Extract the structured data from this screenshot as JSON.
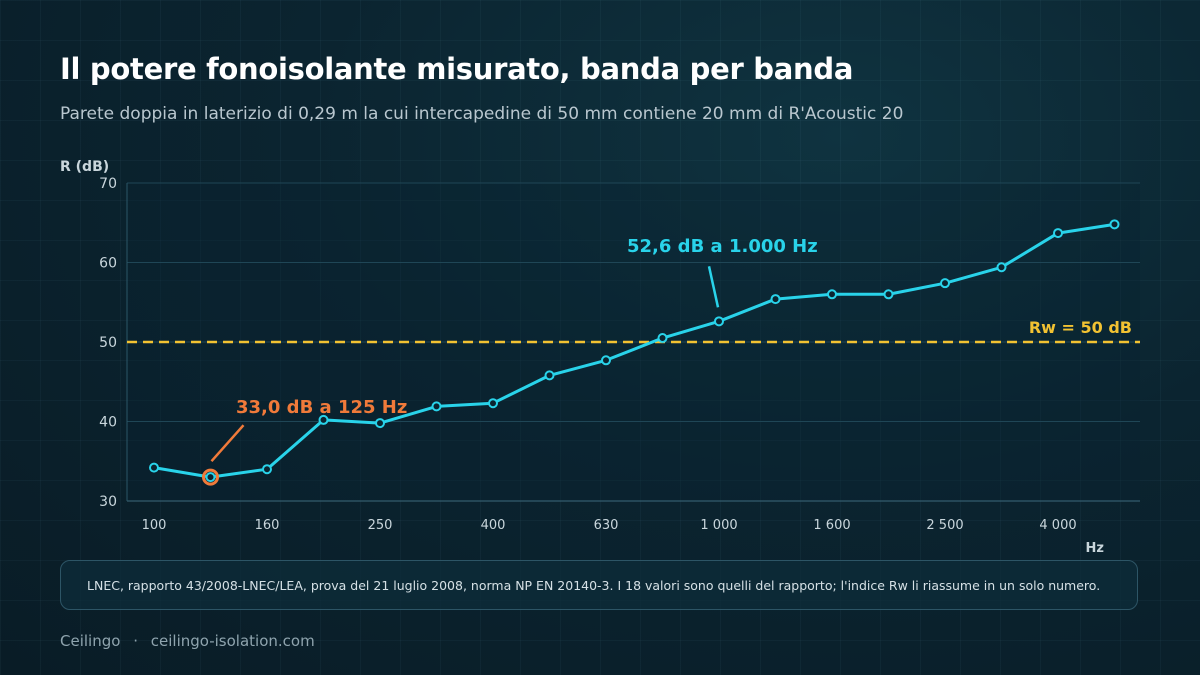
{
  "title": "Il potere fonoisolante misurato, banda per banda",
  "subtitle": "Parete doppia in laterizio di 0,29 m la cui intercapedine di 50 mm contiene 20 mm di R'Acoustic 20",
  "note": "LNEC, rapporto 43/2008-LNEC/LEA, prova del 21 luglio 2008, norma NP EN 20140-3. I 18 valori sono quelli del rapporto; l'indice Rw li riassume in un solo numero.",
  "footer": {
    "brand": "Ceilingo",
    "separator": "·",
    "site": "ceilingo-isolation.com"
  },
  "colors": {
    "series": "#29d3ea",
    "reference": "#f2c232",
    "highlight_low": "#f07a3a",
    "highlight_high": "#29d3ea"
  },
  "chart_data": {
    "type": "line",
    "ylabel": "R (dB)",
    "xlabel": "Hz",
    "ylim": [
      30,
      70
    ],
    "yticks": [
      30,
      40,
      50,
      60,
      70
    ],
    "x": [
      100,
      125,
      160,
      200,
      250,
      315,
      400,
      500,
      630,
      800,
      1000,
      1250,
      1600,
      2000,
      2500,
      3150,
      4000,
      5000
    ],
    "xtick_labels": [
      "100",
      "",
      "160",
      "",
      "250",
      "",
      "400",
      "",
      "630",
      "",
      "1 000",
      "",
      "1 600",
      "",
      "2 500",
      "",
      "4 000",
      ""
    ],
    "values": [
      34.2,
      33.0,
      34.0,
      40.2,
      39.8,
      41.9,
      42.3,
      45.8,
      47.7,
      50.5,
      52.6,
      55.4,
      56.0,
      56.0,
      57.4,
      59.4,
      63.7,
      64.8
    ],
    "grid": true,
    "reference_line": {
      "value": 50,
      "label": "Rw = 50 dB"
    },
    "annotations": [
      {
        "text": "33,0 dB a 125 Hz",
        "point_index": 1
      },
      {
        "text": "52,6 dB a 1.000 Hz",
        "point_index": 10
      }
    ]
  }
}
